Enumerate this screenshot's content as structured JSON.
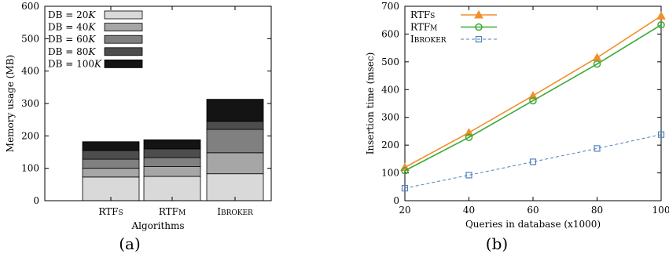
{
  "panels": [
    {
      "caption": "(a)"
    },
    {
      "caption": "(b)"
    }
  ],
  "chart_data": [
    {
      "type": "bar",
      "stacked": true,
      "title": "",
      "xlabel": "Algorithms",
      "ylabel": "Memory usage (MB)",
      "ylim": [
        0,
        600
      ],
      "yticks": [
        0,
        100,
        200,
        300,
        400,
        500,
        600
      ],
      "grid": false,
      "legend_position": "top-left",
      "categories": [
        "RTFs",
        "RTFm",
        "iBroker"
      ],
      "category_labels": [
        {
          "main": "RTF",
          "small": "S"
        },
        {
          "main": "RTF",
          "small": "M"
        },
        {
          "main": "I",
          "small": "BROKER"
        }
      ],
      "series": [
        {
          "name": "DB = 20K",
          "label_parts": [
            "DB = 20",
            "K"
          ],
          "color": "#d9d9d9",
          "values": [
            73,
            75,
            83
          ]
        },
        {
          "name": "DB = 40K",
          "label_parts": [
            "DB = 40",
            "K"
          ],
          "color": "#a6a6a6",
          "values": [
            27,
            30,
            65
          ]
        },
        {
          "name": "DB = 60K",
          "label_parts": [
            "DB = 60",
            "K"
          ],
          "color": "#808080",
          "values": [
            28,
            28,
            72
          ]
        },
        {
          "name": "DB = 80K",
          "label_parts": [
            "DB = 80",
            "K"
          ],
          "color": "#4d4d4d",
          "values": [
            27,
            27,
            25
          ]
        },
        {
          "name": "DB = 100K",
          "label_parts": [
            "DB = 100",
            "K"
          ],
          "color": "#141414",
          "values": [
            27,
            28,
            68
          ]
        }
      ]
    },
    {
      "type": "line",
      "title": "",
      "xlabel": "Queries in database (x1000)",
      "ylabel": "Insertion time (msec)",
      "xlim": [
        20,
        100
      ],
      "ylim": [
        0,
        700
      ],
      "xticks": [
        20,
        40,
        60,
        80,
        100
      ],
      "yticks": [
        0,
        100,
        200,
        300,
        400,
        500,
        600,
        700
      ],
      "grid": false,
      "legend_position": "top-left",
      "x": [
        20,
        40,
        60,
        80,
        100
      ],
      "series": [
        {
          "name": "RTFs",
          "label_parts": {
            "main": "RTF",
            "small": "S"
          },
          "color": "#f28e2b",
          "marker": "triangle",
          "dash": "solid",
          "values": [
            120,
            245,
            378,
            515,
            665
          ]
        },
        {
          "name": "RTFm",
          "label_parts": {
            "main": "RTF",
            "small": "M"
          },
          "color": "#3aaa35",
          "marker": "circle",
          "dash": "solid",
          "values": [
            108,
            228,
            360,
            492,
            633
          ]
        },
        {
          "name": "iBroker",
          "label_parts": {
            "main": "I",
            "small": "BROKER"
          },
          "color": "#4f81bd",
          "marker": "square",
          "dash": "dashed",
          "values": [
            45,
            92,
            140,
            188,
            238
          ]
        }
      ]
    }
  ]
}
